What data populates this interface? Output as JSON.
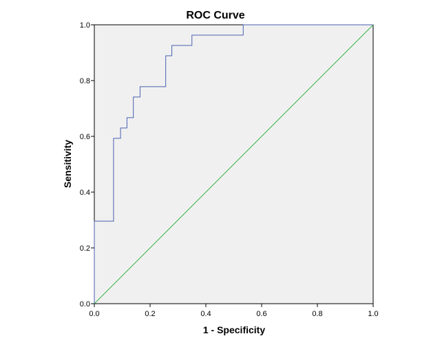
{
  "chart_data": {
    "type": "line",
    "title": "ROC Curve",
    "xlabel": "1 - Specificity",
    "ylabel": "Sensitivity",
    "xlim": [
      0,
      1
    ],
    "ylim": [
      0,
      1
    ],
    "x_ticks": [
      "0.0",
      "0.2",
      "0.4",
      "0.6",
      "0.8",
      "1.0"
    ],
    "y_ticks": [
      "0.0",
      "0.2",
      "0.4",
      "0.6",
      "0.8",
      "1.0"
    ],
    "grid": false,
    "legend": "none",
    "plot_background": "#f0f0f0",
    "series": [
      {
        "color": "#4a5fb0",
        "step": true,
        "points": [
          [
            0.0,
            0.0
          ],
          [
            0.0,
            0.296
          ],
          [
            0.069,
            0.296
          ],
          [
            0.069,
            0.593
          ],
          [
            0.094,
            0.593
          ],
          [
            0.094,
            0.63
          ],
          [
            0.117,
            0.63
          ],
          [
            0.117,
            0.667
          ],
          [
            0.14,
            0.667
          ],
          [
            0.14,
            0.741
          ],
          [
            0.164,
            0.741
          ],
          [
            0.164,
            0.778
          ],
          [
            0.256,
            0.778
          ],
          [
            0.256,
            0.889
          ],
          [
            0.278,
            0.889
          ],
          [
            0.278,
            0.926
          ],
          [
            0.35,
            0.926
          ],
          [
            0.35,
            0.963
          ],
          [
            0.534,
            0.963
          ],
          [
            0.534,
            1.0
          ],
          [
            1.0,
            1.0
          ]
        ]
      },
      {
        "color": "#3cb44b",
        "step": false,
        "points": [
          [
            0,
            0
          ],
          [
            1,
            1
          ]
        ]
      }
    ]
  }
}
